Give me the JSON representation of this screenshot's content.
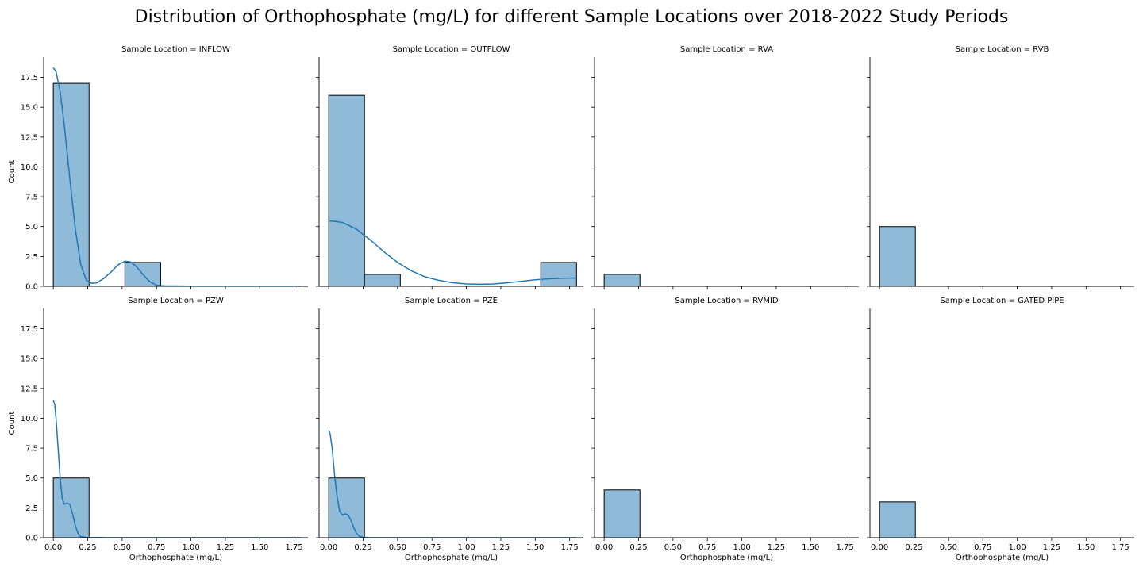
{
  "figure": {
    "title": "Distribution of Orthophosphate (mg/L) for different Sample Locations over 2018-2022 Study Periods"
  },
  "chart_data": {
    "type": "bar",
    "subtype": "histogram-facet-grid",
    "xlabel": "Orthophosphate (mg/L)",
    "ylabel": "Count",
    "xlim": [
      -0.07,
      1.85
    ],
    "ylim": [
      0,
      19.2
    ],
    "x_ticks": [
      "0.00",
      "0.25",
      "0.50",
      "0.75",
      "1.00",
      "1.25",
      "1.50",
      "1.75"
    ],
    "x_tick_values": [
      0,
      0.25,
      0.5,
      0.75,
      1.0,
      1.25,
      1.5,
      1.75
    ],
    "y_ticks": [
      "0.0",
      "2.5",
      "5.0",
      "7.5",
      "10.0",
      "12.5",
      "15.0",
      "17.5"
    ],
    "y_tick_values": [
      0,
      2.5,
      5,
      7.5,
      10,
      12.5,
      15,
      17.5
    ],
    "bar_color": "#8fbbd9",
    "bar_edge": "#000000",
    "kde_color": "#1f77b4",
    "grid": false,
    "panels": [
      {
        "title": "Sample Location = INFLOW",
        "bins": [
          {
            "x0": 0.0,
            "x1": 0.26,
            "count": 17
          },
          {
            "x0": 0.52,
            "x1": 0.78,
            "count": 2
          }
        ],
        "kde": [
          [
            0.0,
            18.3
          ],
          [
            0.02,
            18.0
          ],
          [
            0.05,
            16.3
          ],
          [
            0.08,
            13.5
          ],
          [
            0.12,
            9.0
          ],
          [
            0.16,
            4.8
          ],
          [
            0.2,
            1.8
          ],
          [
            0.24,
            0.5
          ],
          [
            0.28,
            0.25
          ],
          [
            0.32,
            0.3
          ],
          [
            0.37,
            0.7
          ],
          [
            0.42,
            1.2
          ],
          [
            0.47,
            1.8
          ],
          [
            0.52,
            2.1
          ],
          [
            0.56,
            2.05
          ],
          [
            0.6,
            1.7
          ],
          [
            0.65,
            1.0
          ],
          [
            0.7,
            0.4
          ],
          [
            0.75,
            0.1
          ],
          [
            0.8,
            0.04
          ],
          [
            1.0,
            0.02
          ],
          [
            1.4,
            0.01
          ],
          [
            1.8,
            0.01
          ]
        ]
      },
      {
        "title": "Sample Location = OUTFLOW",
        "bins": [
          {
            "x0": 0.0,
            "x1": 0.26,
            "count": 16
          },
          {
            "x0": 0.26,
            "x1": 0.52,
            "count": 1
          },
          {
            "x0": 1.54,
            "x1": 1.8,
            "count": 2
          }
        ],
        "kde": [
          [
            0.0,
            5.5
          ],
          [
            0.1,
            5.35
          ],
          [
            0.2,
            4.8
          ],
          [
            0.3,
            3.9
          ],
          [
            0.4,
            2.9
          ],
          [
            0.5,
            2.0
          ],
          [
            0.6,
            1.3
          ],
          [
            0.7,
            0.8
          ],
          [
            0.8,
            0.5
          ],
          [
            0.9,
            0.3
          ],
          [
            1.0,
            0.2
          ],
          [
            1.1,
            0.17
          ],
          [
            1.2,
            0.2
          ],
          [
            1.3,
            0.3
          ],
          [
            1.4,
            0.42
          ],
          [
            1.5,
            0.55
          ],
          [
            1.6,
            0.63
          ],
          [
            1.7,
            0.68
          ],
          [
            1.8,
            0.7
          ]
        ]
      },
      {
        "title": "Sample Location = RVA",
        "bins": [
          {
            "x0": 0.0,
            "x1": 0.26,
            "count": 1
          }
        ],
        "kde": []
      },
      {
        "title": "Sample Location = RVB",
        "bins": [
          {
            "x0": 0.0,
            "x1": 0.26,
            "count": 5
          }
        ],
        "kde": []
      },
      {
        "title": "Sample Location = PZW",
        "bins": [
          {
            "x0": 0.0,
            "x1": 0.26,
            "count": 5
          }
        ],
        "kde": [
          [
            0.0,
            11.5
          ],
          [
            0.01,
            11.2
          ],
          [
            0.02,
            10.0
          ],
          [
            0.035,
            7.5
          ],
          [
            0.05,
            5.0
          ],
          [
            0.065,
            3.3
          ],
          [
            0.08,
            2.8
          ],
          [
            0.1,
            2.9
          ],
          [
            0.12,
            2.8
          ],
          [
            0.14,
            2.0
          ],
          [
            0.16,
            1.0
          ],
          [
            0.18,
            0.35
          ],
          [
            0.2,
            0.08
          ],
          [
            0.25,
            0.01
          ],
          [
            0.4,
            0.0
          ],
          [
            1.8,
            0.0
          ]
        ]
      },
      {
        "title": "Sample Location = PZE",
        "bins": [
          {
            "x0": 0.0,
            "x1": 0.26,
            "count": 5
          }
        ],
        "kde": [
          [
            0.0,
            9.0
          ],
          [
            0.01,
            8.7
          ],
          [
            0.025,
            7.5
          ],
          [
            0.04,
            5.5
          ],
          [
            0.06,
            3.5
          ],
          [
            0.08,
            2.2
          ],
          [
            0.1,
            1.9
          ],
          [
            0.12,
            2.0
          ],
          [
            0.14,
            1.9
          ],
          [
            0.16,
            1.5
          ],
          [
            0.18,
            0.9
          ],
          [
            0.2,
            0.4
          ],
          [
            0.22,
            0.15
          ],
          [
            0.25,
            0.03
          ],
          [
            0.3,
            0.0
          ],
          [
            1.8,
            0.0
          ]
        ]
      },
      {
        "title": "Sample Location = RVMID",
        "bins": [
          {
            "x0": 0.0,
            "x1": 0.26,
            "count": 4
          }
        ],
        "kde": []
      },
      {
        "title": "Sample Location = GATED PIPE",
        "bins": [
          {
            "x0": 0.0,
            "x1": 0.26,
            "count": 3
          }
        ],
        "kde": []
      }
    ]
  }
}
